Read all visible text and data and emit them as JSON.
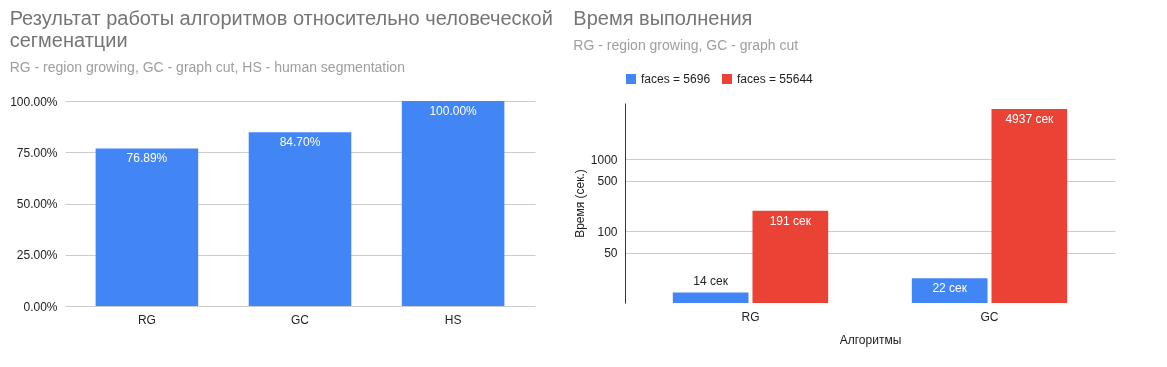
{
  "chart_data": [
    {
      "type": "bar",
      "title": "Результат работы алгоритмов относительно человеческой сегменатции",
      "subtitle": "RG - region growing, GC - graph cut, HS - human segmentation",
      "categories": [
        "RG",
        "GC",
        "HS"
      ],
      "values": [
        76.89,
        84.7,
        100.0
      ],
      "value_labels": [
        "76.89%",
        "84.70%",
        "100.00%"
      ],
      "color": "#4285f4",
      "ylim": [
        0,
        100
      ],
      "yticks": [
        {
          "value": 0,
          "label": "0.00%"
        },
        {
          "value": 25,
          "label": "25.00%"
        },
        {
          "value": 50,
          "label": "50.00%"
        },
        {
          "value": 75,
          "label": "75.00%"
        },
        {
          "value": 100,
          "label": "100.00%"
        }
      ],
      "grid": "y"
    },
    {
      "type": "bar",
      "title": "Время выполнения",
      "subtitle": "RG - region growing, GC - graph cut",
      "xlabel": "Алгоритмы",
      "ylabel": "Время (сек.)",
      "categories": [
        "RG",
        "GC"
      ],
      "series": [
        {
          "name": "faces = 5696",
          "color": "#4285f4",
          "values": [
            14,
            22
          ],
          "value_labels": [
            "14 сек",
            "22 сек"
          ]
        },
        {
          "name": "faces = 55644",
          "color": "#ea4335",
          "values": [
            191,
            4937
          ],
          "value_labels": [
            "191 сек",
            "4937 сек"
          ]
        }
      ],
      "log": true,
      "ylim": [
        10,
        6000
      ],
      "yticks": [
        50,
        100,
        500,
        1000
      ],
      "grid": "y",
      "legend": "top"
    }
  ]
}
